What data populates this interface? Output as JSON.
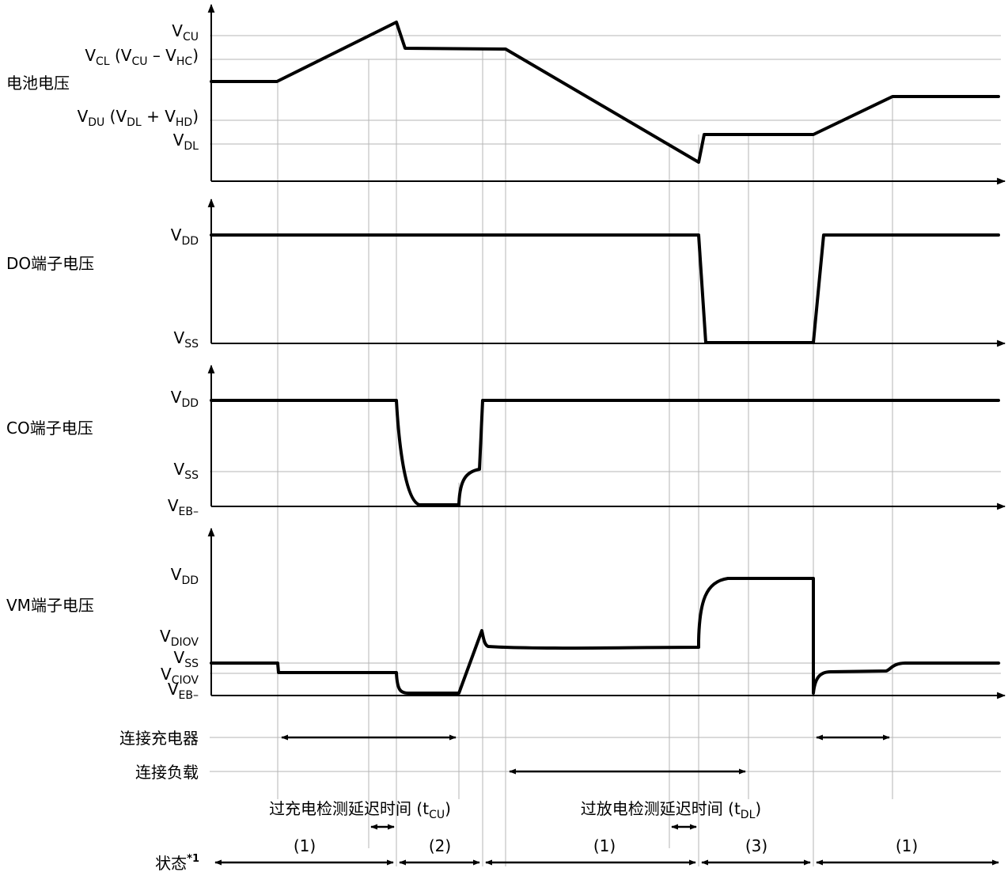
{
  "panels": {
    "battery": {
      "title": "电池电压",
      "levels": {
        "vcu": {
          "main": "V",
          "sub": "CU"
        },
        "vcl": [
          {
            "t": "V",
            "s": "CL"
          },
          {
            "t": " (V",
            "s": "CU"
          },
          {
            "t": " – V",
            "s": "HC"
          },
          {
            "t": ")",
            "s": ""
          }
        ],
        "vdu": [
          {
            "t": "V",
            "s": "DU"
          },
          {
            "t": " (V",
            "s": "DL"
          },
          {
            "t": " + V",
            "s": "HD"
          },
          {
            "t": ")",
            "s": ""
          }
        ],
        "vdl": {
          "main": "V",
          "sub": "DL"
        }
      }
    },
    "do_terminal": {
      "title": "DO端子电压",
      "levels": {
        "vdd": {
          "main": "V",
          "sub": "DD"
        },
        "vss": {
          "main": "V",
          "sub": "SS"
        }
      }
    },
    "co_terminal": {
      "title": "CO端子电压",
      "levels": {
        "vdd": {
          "main": "V",
          "sub": "DD"
        },
        "vss": {
          "main": "V",
          "sub": "SS"
        },
        "veb": {
          "main": "V",
          "sub": "EB–"
        }
      }
    },
    "vm_terminal": {
      "title": "VM端子电压",
      "levels": {
        "vdd": {
          "main": "V",
          "sub": "DD"
        },
        "vdiov": {
          "main": "V",
          "sub": "DIOV"
        },
        "vss": {
          "main": "V",
          "sub": "SS"
        },
        "vciov": {
          "main": "V",
          "sub": "CIOV"
        },
        "veb": {
          "main": "V",
          "sub": "EB–"
        }
      }
    }
  },
  "rows": {
    "charger": "连接充电器",
    "load": "连接负载"
  },
  "delays": {
    "overcharge": {
      "text": "过充电检测延迟时间 (t",
      "sub": "CU",
      "close": ")"
    },
    "overdischarge": {
      "text": "过放电检测延迟时间 (t",
      "sub": "DL",
      "close": ")"
    }
  },
  "state": {
    "label": "状态",
    "note": "*1",
    "segments": [
      "(1)",
      "(2)",
      "(1)",
      "(3)",
      "(1)"
    ]
  }
}
